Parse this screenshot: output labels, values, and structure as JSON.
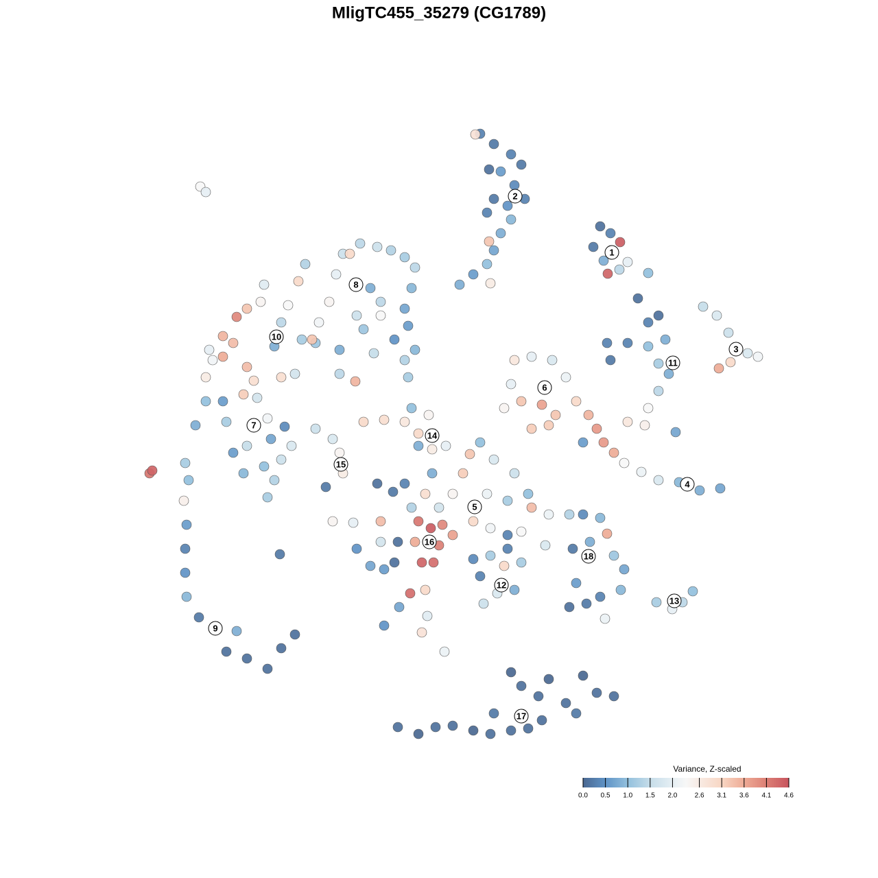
{
  "chart_data": {
    "type": "scatter",
    "title": "MligTC455_35279 (CG1789)",
    "xlim": [
      -46,
      46
    ],
    "ylim": [
      -46,
      46
    ],
    "series": [
      {
        "x": [
          4.0,
          3.3,
          6.0,
          8.5,
          10.0,
          7.0,
          9.0,
          10.5,
          8.0,
          6.0,
          5.0,
          8.5,
          7.0,
          5.3,
          6.0,
          5.0,
          3.0,
          1.0,
          5.5,
          5.3,
          21.5,
          23.0,
          20.5,
          24.4,
          22.0,
          25.5,
          22.6,
          24.3,
          28.5,
          27.0,
          30.0,
          28.5,
          22.5,
          25.5,
          28.5,
          31.0,
          30.0,
          31.5,
          30.0,
          28.5,
          32.5,
          23.0,
          36.5,
          38.5,
          40.2,
          43.0,
          44.5,
          40.5,
          38.8,
          19.8,
          21.0,
          22.0,
          23.5,
          25.5,
          28.0,
          25.0,
          27.5,
          30.0,
          33.0,
          36.0,
          39.0,
          19.0,
          9.0,
          11.5,
          14.5,
          16.5,
          8.5,
          10.0,
          13.0,
          15.0,
          18.0,
          11.5,
          7.5,
          14.0,
          -13.0,
          -10.0,
          -7.0,
          -6.0,
          -3.5,
          -5.0,
          -3.0,
          -5.0,
          -20.0,
          -17.5,
          -16.5,
          -16.0,
          -18.5,
          -1.0,
          2.5,
          4.0,
          6.0,
          9.0,
          1.5,
          0.0,
          5.0,
          8.0,
          11.5,
          11.0,
          3.0,
          5.5,
          10.0,
          14.0,
          17.0,
          13.5,
          -2.0,
          -4.0,
          -3.0,
          -5.0,
          -3.2,
          -1.5,
          -5.5,
          -2.0,
          -4.5,
          -2.8,
          0.0,
          -8.0,
          -10.5,
          -11.0,
          -8.7,
          -7.0,
          -6.0,
          -14.0,
          -12.0,
          -10.0,
          -8.5,
          -10.5,
          -6.2,
          -4.0,
          -7.8,
          -10.0,
          -3.7,
          -4.5,
          -1.2,
          -17.5,
          -14.5,
          3.0,
          5.5,
          8.0,
          10.0,
          7.5,
          4.0,
          9.0,
          4.5,
          6.5,
          8.0,
          19.0,
          21.5,
          22.5,
          17.5,
          20.0,
          25.0,
          23.5,
          18.0,
          24.5,
          19.5,
          17.0,
          22.2,
          21.5,
          29.7,
          32.0,
          33.5,
          35.0,
          -8.0,
          -5.0,
          -2.5,
          0.0,
          3.0,
          5.5,
          6.0,
          8.5,
          8.5,
          10.0,
          12.5,
          14.0,
          13.0,
          16.5,
          19.0,
          21.0,
          23.5,
          18.0,
          11.0,
          -39.0,
          -38.5,
          -39.2,
          -38.8,
          -39.0,
          -39.0,
          -38.8,
          -37.0,
          -34.5,
          -31.5,
          -33.0,
          -30.0,
          -27.0,
          -25.0,
          -23.0,
          -25.2,
          -44.2,
          -43.8,
          -36.8,
          -36.0,
          -37.5,
          -36.0,
          -33.5,
          -33.0,
          -30.5,
          -28.5,
          -27.0,
          -26.5,
          -24.5,
          -30.0,
          -27.5,
          -25.0,
          -23.5,
          -26.0,
          -27.0,
          -30.5,
          -32.0,
          -35.5,
          -33.5,
          -31.5,
          -30.0,
          -32.0,
          -30.0,
          -29.0,
          -36.0,
          -35.0,
          -33.5,
          -28.0,
          -27.5,
          -25.0,
          -24.0,
          -22.5,
          -21.5,
          -20.0,
          -19.5,
          -20.5,
          -18.0,
          -17.0,
          -16.0,
          -15.0,
          -13.5,
          -11.0,
          -9.0,
          -7.0,
          -5.5,
          -6.0,
          -7.0,
          -6.5,
          -8.5,
          -7.0,
          -5.5,
          -12.0,
          -10.5,
          -14.0,
          -13.0,
          -16.5,
          -11.5,
          -16.5,
          -14.2,
          -23.0,
          -25.0,
          -6.5,
          -26.0,
          -22.0,
          -10.5
        ],
        "y": [
          43.5,
          43.4,
          42.0,
          40.5,
          39.0,
          38.0,
          36.0,
          34.0,
          33.0,
          34.0,
          32.0,
          31.0,
          29.0,
          27.8,
          26.5,
          24.5,
          23.0,
          21.5,
          21.7,
          38.3,
          30.0,
          29.0,
          27.0,
          27.7,
          25.0,
          24.8,
          23.1,
          23.7,
          23.2,
          19.5,
          17.0,
          16.0,
          13.0,
          13.0,
          12.5,
          13.5,
          10.0,
          8.5,
          6.0,
          3.5,
          0.0,
          10.5,
          18.3,
          17.0,
          14.5,
          11.5,
          11.0,
          10.2,
          9.3,
          2.5,
          0.5,
          -1.5,
          -3.0,
          1.5,
          1.0,
          -4.5,
          -5.8,
          -7.0,
          -7.3,
          -8.5,
          -8.2,
          -1.5,
          10.5,
          11.0,
          10.5,
          8.0,
          7.0,
          4.5,
          4.0,
          2.5,
          4.5,
          0.5,
          3.5,
          1.0,
          1.5,
          1.8,
          1.5,
          3.5,
          2.5,
          -0.2,
          -2.5,
          -2.0,
          0.5,
          -1.0,
          -3.0,
          -6.0,
          -8.0,
          -2.0,
          -3.2,
          -1.5,
          -4.0,
          -6.0,
          -6.0,
          -9.0,
          -9.0,
          -10.0,
          -11.0,
          -9.0,
          -13.0,
          -14.0,
          -14.5,
          -12.0,
          -12.0,
          -16.5,
          -11.0,
          -9.0,
          -6.0,
          -13.0,
          -14.0,
          -13.5,
          -16.0,
          -16.5,
          -19.0,
          -19.0,
          -15.0,
          -16.0,
          -13.0,
          -7.5,
          -8.7,
          -7.5,
          -11.0,
          -17.0,
          -19.5,
          -20.0,
          -19.0,
          -16.0,
          -23.5,
          -23.0,
          -25.5,
          -28.2,
          -26.8,
          -29.2,
          -32.0,
          -13.0,
          -13.2,
          -18.5,
          -18.0,
          -17.0,
          -19.0,
          -19.5,
          -21.0,
          -23.0,
          -25.0,
          -23.5,
          -15.0,
          -12.0,
          -12.5,
          -14.8,
          -17.0,
          -16.0,
          -20.0,
          -18.0,
          -22.0,
          -23.0,
          -25.0,
          -25.5,
          -27.2,
          -24.0,
          -24.8,
          -25.8,
          -24.8,
          -23.2,
          -43.0,
          -44.0,
          -43.0,
          -42.8,
          -43.5,
          -44.0,
          -41.0,
          -43.5,
          -35.0,
          -37.0,
          -38.5,
          -36.0,
          -42.0,
          -39.5,
          -35.5,
          -38.0,
          -38.5,
          -41.0,
          -43.2,
          -4.5,
          -7.0,
          -10.0,
          -13.5,
          -17.0,
          -20.5,
          -24.0,
          -27.0,
          -28.5,
          -29.0,
          -32.0,
          -33.0,
          -34.5,
          -31.5,
          -29.5,
          -17.8,
          -6.0,
          -5.6,
          35.8,
          35.0,
          1.0,
          4.5,
          4.5,
          1.5,
          5.5,
          5.0,
          2.0,
          -1.0,
          0.8,
          -2.0,
          -5.0,
          -4.0,
          -2.0,
          -7.0,
          -9.5,
          -6.0,
          -3.0,
          12.0,
          14.0,
          16.8,
          18.0,
          13.0,
          9.5,
          7.5,
          8.0,
          10.5,
          11.0,
          19.0,
          21.5,
          16.0,
          18.5,
          22.0,
          24.5,
          13.0,
          16.0,
          13.5,
          19.0,
          23.0,
          26.0,
          26.0,
          27.5,
          27.0,
          26.5,
          25.5,
          24.0,
          21.0,
          18.0,
          15.5,
          13.5,
          10.5,
          12.0,
          21.0,
          19.0,
          17.0,
          15.0,
          12.0,
          11.5,
          8.5,
          7.4,
          8.5,
          8.0,
          8.0,
          12.5,
          13.5,
          17.0
        ],
        "values": [
          0.3,
          2.8,
          0.2,
          0.3,
          0.2,
          0.6,
          0.4,
          0.3,
          0.5,
          0.2,
          0.3,
          0.9,
          0.8,
          3.3,
          0.7,
          1.0,
          0.6,
          0.8,
          2.6,
          0.1,
          0.1,
          0.3,
          0.2,
          4.5,
          0.8,
          2.0,
          4.4,
          1.4,
          1.0,
          0.1,
          0.1,
          0.3,
          0.3,
          0.3,
          1.0,
          0.8,
          1.2,
          0.8,
          1.4,
          2.3,
          0.7,
          0.2,
          1.5,
          1.8,
          1.6,
          1.8,
          2.2,
          3.0,
          3.6,
          3.5,
          3.8,
          3.8,
          3.6,
          2.7,
          2.5,
          2.3,
          2.1,
          1.8,
          0.9,
          0.8,
          0.7,
          0.6,
          2.7,
          2.0,
          1.8,
          2.1,
          2.0,
          3.3,
          3.7,
          3.3,
          3.0,
          3.2,
          2.4,
          3.2,
          3.0,
          2.9,
          2.7,
          1.0,
          2.4,
          3.0,
          2.6,
          0.8,
          1.6,
          1.8,
          2.4,
          2.6,
          0.2,
          2.0,
          3.3,
          1.0,
          1.8,
          1.6,
          3.2,
          2.4,
          2.1,
          1.2,
          3.4,
          1.0,
          3.0,
          2.2,
          2.3,
          2.1,
          1.3,
          1.8,
          1.7,
          2.9,
          0.8,
          4.2,
          4.5,
          4.0,
          3.6,
          4.1,
          4.4,
          4.3,
          3.7,
          0.1,
          3.4,
          0.1,
          0.2,
          0.3,
          1.3,
          0.5,
          0.7,
          0.6,
          0.1,
          1.7,
          4.3,
          3.0,
          0.7,
          0.5,
          1.9,
          2.8,
          2.1,
          2.4,
          2.0,
          0.4,
          1.2,
          0.3,
          1.2,
          3.0,
          0.3,
          0.8,
          1.6,
          1.8,
          0.3,
          0.4,
          0.9,
          3.6,
          0.2,
          0.8,
          0.7,
          1.1,
          0.6,
          0.9,
          0.2,
          0.1,
          2.1,
          0.3,
          1.2,
          2.0,
          1.4,
          1.0,
          0.1,
          0.0,
          0.1,
          0.1,
          0.0,
          0.1,
          0.2,
          0.1,
          0.0,
          0.1,
          0.1,
          0.0,
          0.1,
          0.1,
          0.0,
          0.1,
          0.1,
          0.2,
          0.1,
          1.2,
          1.0,
          2.5,
          0.6,
          0.3,
          0.5,
          0.9,
          0.2,
          0.1,
          0.8,
          0.1,
          0.1,
          0.1,
          0.1,
          0.1,
          0.2,
          4.2,
          4.4,
          2.3,
          2.0,
          0.8,
          1.0,
          0.6,
          1.2,
          3.2,
          1.7,
          2.2,
          0.7,
          0.4,
          1.5,
          1.0,
          1.6,
          1.8,
          1.3,
          1.2,
          0.9,
          0.6,
          2.0,
          3.5,
          4.0,
          3.3,
          3.4,
          3.4,
          2.9,
          2.6,
          2.2,
          3.6,
          2.4,
          1.9,
          1.4,
          2.3,
          3.0,
          1.3,
          1.1,
          2.2,
          3.3,
          2.4,
          2.0,
          1.6,
          3.0,
          1.4,
          1.6,
          1.3,
          1.2,
          1.4,
          0.9,
          0.7,
          0.6,
          0.5,
          1.3,
          0.9,
          0.8,
          1.4,
          1.6,
          1.1,
          0.8,
          1.5,
          1.4,
          3.5,
          1.7,
          2.9,
          1.2,
          0.8,
          1.2,
          2.3
        ]
      }
    ],
    "clusters": {
      "labels": [
        "1",
        "2",
        "3",
        "4",
        "5",
        "6",
        "7",
        "8",
        "9",
        "10",
        "11",
        "12",
        "13",
        "14",
        "15",
        "16",
        "17",
        "18"
      ],
      "x": [
        23.2,
        9.1,
        41.3,
        34.2,
        3.2,
        13.4,
        -29.0,
        -14.1,
        -34.6,
        -25.7,
        32.1,
        7.1,
        32.3,
        -3.0,
        -16.3,
        -3.4,
        10.0,
        19.8
      ],
      "y": [
        26.2,
        34.4,
        12.1,
        -7.6,
        -10.9,
        6.5,
        1.0,
        21.5,
        -28.6,
        13.9,
        10.1,
        -22.3,
        -24.6,
        -0.5,
        -4.7,
        -16.0,
        -41.4,
        -18.1
      ]
    },
    "colorbar": {
      "title": "Variance, Z-scaled",
      "lim": [
        0,
        4.6
      ],
      "ticks": [
        {
          "value": 0,
          "label": "0.0"
        },
        0.5,
        {
          "value": 1,
          "label": "1.0"
        },
        1.5,
        {
          "value": 2,
          "label": "2.0"
        },
        2.6,
        3.1,
        3.6,
        4.1,
        4.6
      ],
      "colorscale": [
        [
          0,
          "#4a6891"
        ],
        [
          0.5,
          "#5f93c6"
        ],
        [
          1,
          "#93c0dd"
        ],
        [
          1.5,
          "#c6dde9"
        ],
        [
          2,
          "#e6eff4"
        ],
        [
          2.3,
          "#f7f7f7"
        ],
        [
          3.1,
          "#f8d6c3"
        ],
        [
          3.6,
          "#eeab96"
        ],
        [
          4.1,
          "#dc7f75"
        ],
        [
          4.6,
          "#c7545e"
        ]
      ]
    }
  }
}
